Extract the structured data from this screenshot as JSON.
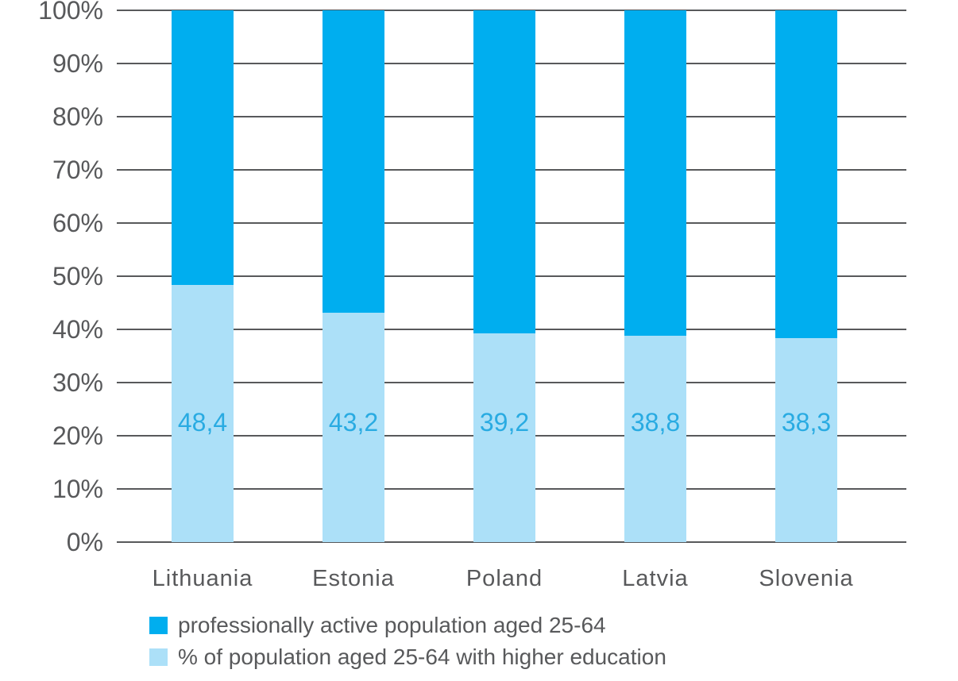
{
  "chart_data": {
    "type": "bar",
    "stacking": "100%",
    "title": "",
    "xlabel": "",
    "ylabel": "",
    "categories": [
      "Lithuania",
      "Estonia",
      "Poland",
      "Latvia",
      "Slovenia"
    ],
    "series": [
      {
        "name": "professionally active population aged 25-64",
        "role": "top",
        "color": "#00AEEF",
        "values": [
          51.6,
          56.8,
          60.8,
          61.2,
          61.7
        ]
      },
      {
        "name": "% of population aged 25-64 with higher education",
        "role": "bottom",
        "color": "#ACE0F8",
        "values": [
          48.4,
          43.2,
          39.2,
          38.8,
          38.3
        ],
        "value_labels": [
          "48,4",
          "43,2",
          "39,2",
          "38,8",
          "38,3"
        ]
      }
    ],
    "yticks": [
      "0%",
      "10%",
      "20%",
      "30%",
      "40%",
      "50%",
      "60%",
      "70%",
      "80%",
      "90%",
      "100%"
    ],
    "ylim": [
      0,
      100
    ],
    "grid": true,
    "legend_position": "bottom-left",
    "legend": [
      {
        "label": "professionally active population aged 25-64",
        "color": "#00AEEF"
      },
      {
        "label": "% of population aged 25-64 with higher education",
        "color": "#ACE0F8"
      }
    ],
    "colors": {
      "value_label": "#29ABE2",
      "axis_text": "#58595B",
      "gridline": "#58595B",
      "background": "#FFFFFF"
    }
  }
}
